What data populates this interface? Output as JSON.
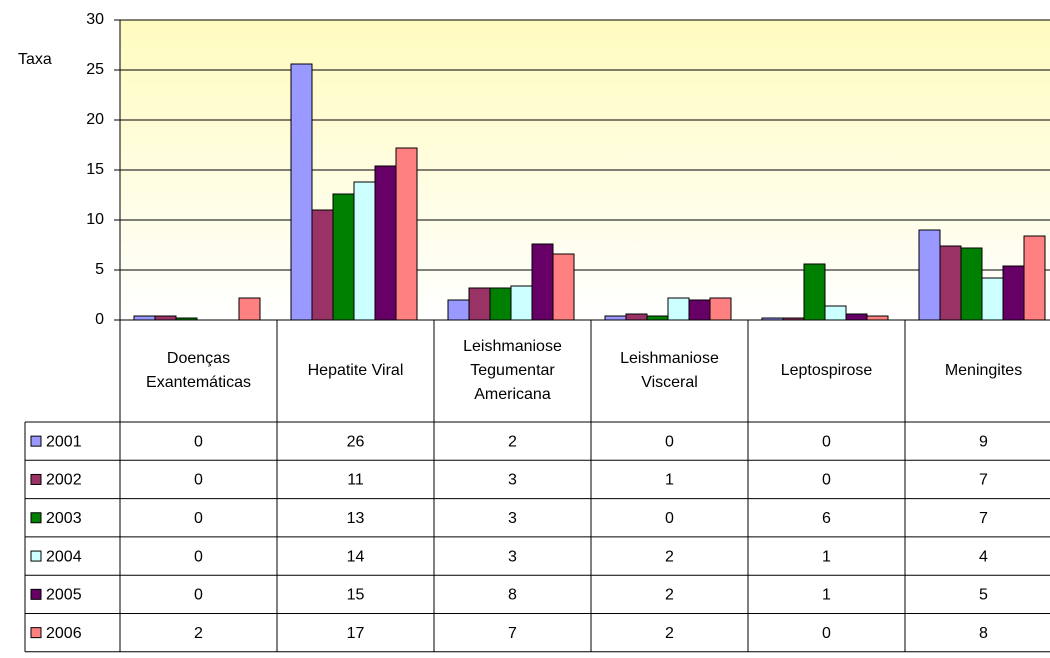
{
  "chart_data": {
    "type": "bar",
    "ylabel": "Taxa",
    "categories": [
      "Doenças Exantemáticas",
      "Hepatite Viral",
      "Leishmaniose Tegumentar Americana",
      "Leishmaniose Visceral",
      "Leptospirose",
      "Meningites"
    ],
    "series": [
      {
        "name": "2001",
        "color": "#9999ff",
        "values": [
          0.4,
          25.6,
          2.0,
          0.4,
          0.2,
          9.0
        ],
        "value_labels": [
          "0",
          "26",
          "2",
          "0",
          "0",
          "9"
        ]
      },
      {
        "name": "2002",
        "color": "#993366",
        "values": [
          0.4,
          11.0,
          3.2,
          0.6,
          0.2,
          7.4
        ],
        "value_labels": [
          "0",
          "11",
          "3",
          "1",
          "0",
          "7"
        ]
      },
      {
        "name": "2003",
        "color": "#008000",
        "values": [
          0.2,
          12.6,
          3.2,
          0.4,
          5.6,
          7.2
        ],
        "value_labels": [
          "0",
          "13",
          "3",
          "0",
          "6",
          "7"
        ]
      },
      {
        "name": "2004",
        "color": "#ccffff",
        "values": [
          0,
          13.8,
          3.4,
          2.2,
          1.4,
          4.2
        ],
        "value_labels": [
          "0",
          "14",
          "3",
          "2",
          "1",
          "4"
        ]
      },
      {
        "name": "2005",
        "color": "#660066",
        "values": [
          0,
          15.4,
          7.6,
          2.0,
          0.6,
          5.4
        ],
        "value_labels": [
          "0",
          "15",
          "8",
          "2",
          "1",
          "5"
        ]
      },
      {
        "name": "2006",
        "color": "#ff8080",
        "values": [
          2.2,
          17.2,
          6.6,
          2.2,
          0.4,
          8.4
        ],
        "value_labels": [
          "2",
          "17",
          "7",
          "2",
          "0",
          "8"
        ]
      }
    ],
    "ylim": [
      0,
      30
    ],
    "yticks": [
      0,
      5,
      10,
      15,
      20,
      25,
      30
    ],
    "grid": true
  }
}
